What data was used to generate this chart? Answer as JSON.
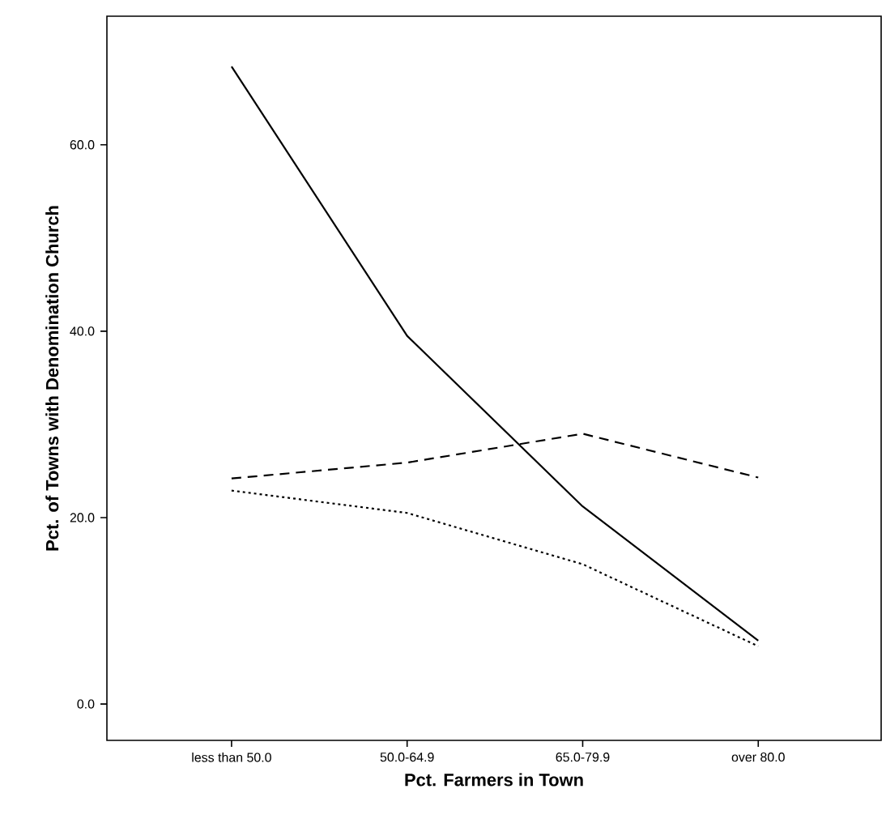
{
  "chart_data": {
    "type": "line",
    "xlabel": "Pct. Farmers in Town",
    "ylabel": "Pct. of Towns with Denomination Church",
    "categories": [
      "less than 50.0",
      "50.0-64.9",
      "65.0-79.9",
      "over 80.0"
    ],
    "ylim": [
      -3.9,
      73.8
    ],
    "yticks": [
      {
        "value": 0,
        "label": "0.0"
      },
      {
        "value": 20,
        "label": "20.0"
      },
      {
        "value": 40,
        "label": "40.0"
      },
      {
        "value": 60,
        "label": "60.0"
      }
    ],
    "grid": false,
    "marker": "none",
    "series": [
      {
        "color": "#000000",
        "line_style": "solid",
        "values": [
          68.4,
          39.5,
          21.2,
          6.8
        ]
      },
      {
        "color": "#000000",
        "line_style": "dashed",
        "values": [
          24.2,
          25.9,
          29.0,
          24.3
        ]
      },
      {
        "color": "#000000",
        "line_style": "dotted",
        "values": [
          22.9,
          20.5,
          15.0,
          6.2
        ]
      }
    ]
  }
}
